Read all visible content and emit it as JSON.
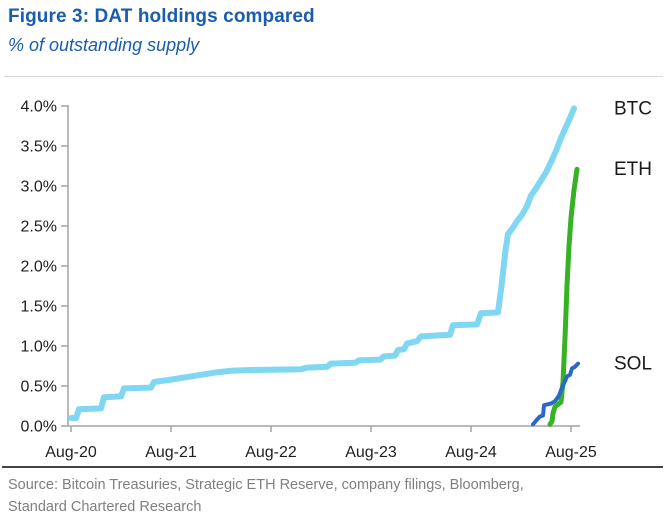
{
  "header": {
    "title": "Figure 3: DAT holdings compared",
    "subtitle": "% of outstanding supply"
  },
  "footer": {
    "source_line1": "Source: Bitcoin Treasuries, Strategic ETH Reserve, company filings, Bloomberg,",
    "source_line2": "Standard Chartered Research"
  },
  "colors": {
    "title_blue": "#1a5cad",
    "axis_gray": "#a3a3a3",
    "tick_text": "#1f1f1f",
    "label_text": "#1a1a1a",
    "source_gray": "#7f7f7f",
    "btc": "#7fd7f2",
    "eth": "#36b224",
    "sol": "#2b68c8"
  },
  "chart_data": {
    "type": "line",
    "title": "Figure 3: DAT holdings compared",
    "subtitle_ylabel": "% of outstanding supply",
    "x_unit": "years since Aug-2020",
    "xlim": [
      -0.03,
      5.12
    ],
    "ylim": [
      0,
      4.0
    ],
    "grid": false,
    "legend_position": "right-of-line-ends",
    "x_ticks": [
      {
        "label": "Aug-20",
        "t": 0
      },
      {
        "label": "Aug-21",
        "t": 1
      },
      {
        "label": "Aug-22",
        "t": 2
      },
      {
        "label": "Aug-23",
        "t": 3
      },
      {
        "label": "Aug-24",
        "t": 4
      },
      {
        "label": "Aug-25",
        "t": 5
      }
    ],
    "y_ticks": [
      {
        "label": "0.0%",
        "v": 0.0
      },
      {
        "label": "0.5%",
        "v": 0.5
      },
      {
        "label": "1.0%",
        "v": 1.0
      },
      {
        "label": "1.5%",
        "v": 1.5
      },
      {
        "label": "2.0%",
        "v": 2.0
      },
      {
        "label": "2.5%",
        "v": 2.5
      },
      {
        "label": "3.0%",
        "v": 3.0
      },
      {
        "label": "3.5%",
        "v": 3.5
      },
      {
        "label": "4.0%",
        "v": 4.0
      }
    ],
    "series": [
      {
        "name": "BTC",
        "label": "BTC",
        "color": "#7fd7f2",
        "stroke_width": 6,
        "points": [
          [
            0.0,
            0.1
          ],
          [
            0.05,
            0.1
          ],
          [
            0.08,
            0.21
          ],
          [
            0.3,
            0.22
          ],
          [
            0.33,
            0.36
          ],
          [
            0.5,
            0.37
          ],
          [
            0.53,
            0.47
          ],
          [
            0.8,
            0.48
          ],
          [
            0.83,
            0.55
          ],
          [
            1.0,
            0.58
          ],
          [
            1.15,
            0.61
          ],
          [
            1.3,
            0.64
          ],
          [
            1.45,
            0.67
          ],
          [
            1.6,
            0.69
          ],
          [
            1.8,
            0.7
          ],
          [
            2.3,
            0.71
          ],
          [
            2.36,
            0.73
          ],
          [
            2.56,
            0.74
          ],
          [
            2.6,
            0.78
          ],
          [
            2.84,
            0.79
          ],
          [
            2.88,
            0.82
          ],
          [
            3.09,
            0.83
          ],
          [
            3.13,
            0.87
          ],
          [
            3.24,
            0.88
          ],
          [
            3.27,
            0.95
          ],
          [
            3.33,
            0.96
          ],
          [
            3.36,
            1.03
          ],
          [
            3.46,
            1.06
          ],
          [
            3.5,
            1.12
          ],
          [
            3.64,
            1.13
          ],
          [
            3.79,
            1.14
          ],
          [
            3.82,
            1.26
          ],
          [
            4.06,
            1.27
          ],
          [
            4.1,
            1.41
          ],
          [
            4.27,
            1.42
          ],
          [
            4.31,
            1.8
          ],
          [
            4.34,
            2.15
          ],
          [
            4.37,
            2.4
          ],
          [
            4.42,
            2.48
          ],
          [
            4.46,
            2.56
          ],
          [
            4.51,
            2.64
          ],
          [
            4.56,
            2.75
          ],
          [
            4.6,
            2.88
          ],
          [
            4.65,
            2.97
          ],
          [
            4.7,
            3.07
          ],
          [
            4.75,
            3.17
          ],
          [
            4.8,
            3.3
          ],
          [
            4.85,
            3.44
          ],
          [
            4.9,
            3.6
          ],
          [
            4.95,
            3.74
          ],
          [
            5.0,
            3.88
          ],
          [
            5.03,
            3.97
          ]
        ]
      },
      {
        "name": "ETH",
        "label": "ETH",
        "color": "#36b224",
        "stroke_width": 5,
        "points": [
          [
            4.79,
            0.02
          ],
          [
            4.81,
            0.06
          ],
          [
            4.82,
            0.16
          ],
          [
            4.84,
            0.24
          ],
          [
            4.87,
            0.27
          ],
          [
            4.9,
            0.3
          ],
          [
            4.92,
            0.55
          ],
          [
            4.94,
            1.1
          ],
          [
            4.96,
            1.75
          ],
          [
            4.98,
            2.25
          ],
          [
            5.0,
            2.6
          ],
          [
            5.03,
            2.95
          ],
          [
            5.06,
            3.21
          ]
        ]
      },
      {
        "name": "SOL",
        "label": "SOL",
        "color": "#2b68c8",
        "stroke_width": 4,
        "points": [
          [
            4.62,
            0.02
          ],
          [
            4.66,
            0.08
          ],
          [
            4.69,
            0.12
          ],
          [
            4.72,
            0.13
          ],
          [
            4.73,
            0.26
          ],
          [
            4.8,
            0.28
          ],
          [
            4.84,
            0.31
          ],
          [
            4.88,
            0.38
          ],
          [
            4.91,
            0.48
          ],
          [
            4.94,
            0.56
          ],
          [
            4.96,
            0.62
          ],
          [
            4.99,
            0.64
          ],
          [
            5.01,
            0.72
          ],
          [
            5.04,
            0.74
          ],
          [
            5.07,
            0.78
          ]
        ]
      }
    ]
  }
}
